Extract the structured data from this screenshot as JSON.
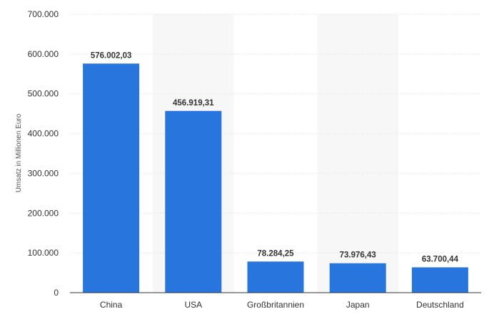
{
  "chart_data": {
    "type": "bar",
    "categories": [
      "China",
      "USA",
      "Großbritannien",
      "Japan",
      "Deutschland"
    ],
    "values": [
      576002.03,
      456919.31,
      78284.25,
      73976.43,
      63700.44
    ],
    "value_labels": [
      "576.002,03",
      "456.919,31",
      "78.284,25",
      "73.976,43",
      "63.700,44"
    ],
    "ylabel": "Umsatz in Millionen Euro",
    "xlabel": "",
    "title": "",
    "ylim": [
      0,
      700000
    ],
    "y_ticks": [
      0,
      100000,
      200000,
      300000,
      400000,
      500000,
      600000,
      700000
    ],
    "y_tick_labels": [
      "0",
      "100.000",
      "200.000",
      "300.000",
      "400.000",
      "500.000",
      "600.000",
      "700.000"
    ],
    "grid": true,
    "bar_color": "#2876dd",
    "band_color": "#f7f7f7",
    "grid_color": "#dddddd"
  }
}
